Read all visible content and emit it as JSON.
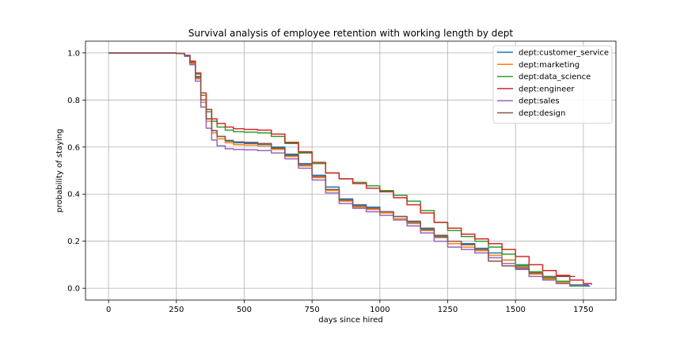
{
  "chart_data": {
    "type": "line",
    "title": "Survival analysis of employee retention with working length by dept",
    "xlabel": "days since hired",
    "ylabel": "probability of staying",
    "xlim": [
      -85,
      1870
    ],
    "ylim": [
      -0.05,
      1.05
    ],
    "xticks": [
      0,
      250,
      500,
      750,
      1000,
      1250,
      1500,
      1750
    ],
    "yticks": [
      0.0,
      0.2,
      0.4,
      0.6,
      0.8,
      1.0
    ],
    "grid": true,
    "legend_position": "top-right",
    "series": [
      {
        "name": "dept:customer_service",
        "color": "#1f77b4",
        "points": [
          [
            0,
            1.0
          ],
          [
            250,
            0.998
          ],
          [
            280,
            0.99
          ],
          [
            300,
            0.96
          ],
          [
            320,
            0.9
          ],
          [
            340,
            0.8
          ],
          [
            360,
            0.72
          ],
          [
            380,
            0.67
          ],
          [
            400,
            0.645
          ],
          [
            430,
            0.625
          ],
          [
            460,
            0.618
          ],
          [
            500,
            0.615
          ],
          [
            550,
            0.612
          ],
          [
            600,
            0.6
          ],
          [
            650,
            0.57
          ],
          [
            700,
            0.53
          ],
          [
            750,
            0.48
          ],
          [
            800,
            0.43
          ],
          [
            850,
            0.38
          ],
          [
            900,
            0.355
          ],
          [
            950,
            0.345
          ],
          [
            1000,
            0.325
          ],
          [
            1050,
            0.305
          ],
          [
            1100,
            0.28
          ],
          [
            1150,
            0.25
          ],
          [
            1200,
            0.22
          ],
          [
            1250,
            0.2
          ],
          [
            1300,
            0.19
          ],
          [
            1350,
            0.17
          ],
          [
            1400,
            0.15
          ],
          [
            1450,
            0.12
          ],
          [
            1500,
            0.095
          ],
          [
            1550,
            0.06
          ],
          [
            1600,
            0.04
          ],
          [
            1650,
            0.025
          ],
          [
            1700,
            0.015
          ],
          [
            1750,
            0.01
          ],
          [
            1775,
            0.01
          ]
        ]
      },
      {
        "name": "dept:marketing",
        "color": "#ff7f0e",
        "points": [
          [
            0,
            1.0
          ],
          [
            250,
            0.998
          ],
          [
            280,
            0.988
          ],
          [
            300,
            0.955
          ],
          [
            320,
            0.89
          ],
          [
            340,
            0.79
          ],
          [
            360,
            0.71
          ],
          [
            380,
            0.66
          ],
          [
            400,
            0.635
          ],
          [
            430,
            0.618
          ],
          [
            460,
            0.61
          ],
          [
            500,
            0.608
          ],
          [
            550,
            0.605
          ],
          [
            600,
            0.59
          ],
          [
            650,
            0.56
          ],
          [
            700,
            0.52
          ],
          [
            750,
            0.47
          ],
          [
            800,
            0.415
          ],
          [
            850,
            0.37
          ],
          [
            900,
            0.345
          ],
          [
            950,
            0.335
          ],
          [
            1000,
            0.32
          ],
          [
            1050,
            0.295
          ],
          [
            1100,
            0.275
          ],
          [
            1150,
            0.245
          ],
          [
            1200,
            0.215
          ],
          [
            1250,
            0.19
          ],
          [
            1300,
            0.175
          ],
          [
            1350,
            0.16
          ],
          [
            1400,
            0.14
          ],
          [
            1450,
            0.12
          ],
          [
            1500,
            0.09
          ],
          [
            1550,
            0.06
          ],
          [
            1600,
            0.04
          ],
          [
            1650,
            0.025
          ],
          [
            1700,
            0.015
          ],
          [
            1740,
            0.015
          ]
        ]
      },
      {
        "name": "dept:data_science",
        "color": "#2ca02c",
        "points": [
          [
            0,
            1.0
          ],
          [
            250,
            0.998
          ],
          [
            280,
            0.99
          ],
          [
            300,
            0.965
          ],
          [
            320,
            0.91
          ],
          [
            340,
            0.82
          ],
          [
            360,
            0.75
          ],
          [
            380,
            0.71
          ],
          [
            400,
            0.685
          ],
          [
            430,
            0.672
          ],
          [
            460,
            0.665
          ],
          [
            500,
            0.663
          ],
          [
            550,
            0.66
          ],
          [
            600,
            0.645
          ],
          [
            650,
            0.615
          ],
          [
            700,
            0.575
          ],
          [
            750,
            0.53
          ],
          [
            800,
            0.49
          ],
          [
            850,
            0.465
          ],
          [
            900,
            0.45
          ],
          [
            950,
            0.435
          ],
          [
            1000,
            0.415
          ],
          [
            1050,
            0.395
          ],
          [
            1100,
            0.37
          ],
          [
            1150,
            0.33
          ],
          [
            1200,
            0.28
          ],
          [
            1250,
            0.245
          ],
          [
            1300,
            0.22
          ],
          [
            1350,
            0.2
          ],
          [
            1400,
            0.175
          ],
          [
            1450,
            0.145
          ],
          [
            1500,
            0.1
          ],
          [
            1550,
            0.07
          ],
          [
            1600,
            0.045
          ],
          [
            1650,
            0.03
          ],
          [
            1700,
            0.01
          ],
          [
            1750,
            0.01
          ]
        ]
      },
      {
        "name": "dept:engineer",
        "color": "#d62728",
        "points": [
          [
            0,
            1.0
          ],
          [
            250,
            0.998
          ],
          [
            280,
            0.99
          ],
          [
            300,
            0.965
          ],
          [
            320,
            0.915
          ],
          [
            340,
            0.83
          ],
          [
            360,
            0.76
          ],
          [
            380,
            0.72
          ],
          [
            400,
            0.7
          ],
          [
            430,
            0.685
          ],
          [
            460,
            0.678
          ],
          [
            500,
            0.675
          ],
          [
            550,
            0.672
          ],
          [
            600,
            0.655
          ],
          [
            650,
            0.62
          ],
          [
            700,
            0.58
          ],
          [
            750,
            0.535
          ],
          [
            800,
            0.49
          ],
          [
            850,
            0.465
          ],
          [
            900,
            0.445
          ],
          [
            950,
            0.425
          ],
          [
            1000,
            0.41
          ],
          [
            1050,
            0.385
          ],
          [
            1100,
            0.355
          ],
          [
            1150,
            0.32
          ],
          [
            1200,
            0.28
          ],
          [
            1250,
            0.255
          ],
          [
            1300,
            0.23
          ],
          [
            1350,
            0.21
          ],
          [
            1400,
            0.19
          ],
          [
            1450,
            0.165
          ],
          [
            1500,
            0.135
          ],
          [
            1550,
            0.1
          ],
          [
            1600,
            0.075
          ],
          [
            1650,
            0.055
          ],
          [
            1700,
            0.035
          ],
          [
            1750,
            0.02
          ],
          [
            1780,
            0.015
          ]
        ]
      },
      {
        "name": "dept:sales",
        "color": "#9467bd",
        "points": [
          [
            0,
            1.0
          ],
          [
            250,
            0.998
          ],
          [
            280,
            0.985
          ],
          [
            300,
            0.95
          ],
          [
            320,
            0.88
          ],
          [
            340,
            0.77
          ],
          [
            360,
            0.68
          ],
          [
            380,
            0.63
          ],
          [
            400,
            0.605
          ],
          [
            430,
            0.593
          ],
          [
            460,
            0.59
          ],
          [
            500,
            0.588
          ],
          [
            550,
            0.585
          ],
          [
            600,
            0.575
          ],
          [
            650,
            0.55
          ],
          [
            700,
            0.51
          ],
          [
            750,
            0.46
          ],
          [
            800,
            0.405
          ],
          [
            850,
            0.36
          ],
          [
            900,
            0.34
          ],
          [
            950,
            0.325
          ],
          [
            1000,
            0.31
          ],
          [
            1050,
            0.29
          ],
          [
            1100,
            0.265
          ],
          [
            1150,
            0.235
          ],
          [
            1200,
            0.2
          ],
          [
            1250,
            0.175
          ],
          [
            1300,
            0.165
          ],
          [
            1350,
            0.15
          ],
          [
            1400,
            0.13
          ],
          [
            1450,
            0.105
          ],
          [
            1500,
            0.08
          ],
          [
            1550,
            0.05
          ],
          [
            1600,
            0.035
          ],
          [
            1650,
            0.02
          ],
          [
            1700,
            0.015
          ],
          [
            1770,
            0.015
          ]
        ]
      },
      {
        "name": "dept:design",
        "color": "#8c564b",
        "points": [
          [
            0,
            1.0
          ],
          [
            250,
            0.998
          ],
          [
            280,
            0.99
          ],
          [
            300,
            0.96
          ],
          [
            320,
            0.895
          ],
          [
            340,
            0.8
          ],
          [
            360,
            0.72
          ],
          [
            380,
            0.67
          ],
          [
            400,
            0.645
          ],
          [
            430,
            0.628
          ],
          [
            460,
            0.622
          ],
          [
            500,
            0.62
          ],
          [
            550,
            0.615
          ],
          [
            600,
            0.595
          ],
          [
            650,
            0.565
          ],
          [
            700,
            0.525
          ],
          [
            750,
            0.475
          ],
          [
            800,
            0.42
          ],
          [
            850,
            0.375
          ],
          [
            900,
            0.35
          ],
          [
            950,
            0.34
          ],
          [
            1000,
            0.325
          ],
          [
            1050,
            0.305
          ],
          [
            1100,
            0.285
          ],
          [
            1150,
            0.255
          ],
          [
            1200,
            0.225
          ],
          [
            1250,
            0.2
          ],
          [
            1300,
            0.185
          ],
          [
            1350,
            0.165
          ],
          [
            1400,
            0.115
          ],
          [
            1450,
            0.095
          ],
          [
            1500,
            0.085
          ],
          [
            1550,
            0.065
          ],
          [
            1600,
            0.05
          ],
          [
            1650,
            0.05
          ],
          [
            1720,
            0.05
          ]
        ]
      }
    ]
  }
}
